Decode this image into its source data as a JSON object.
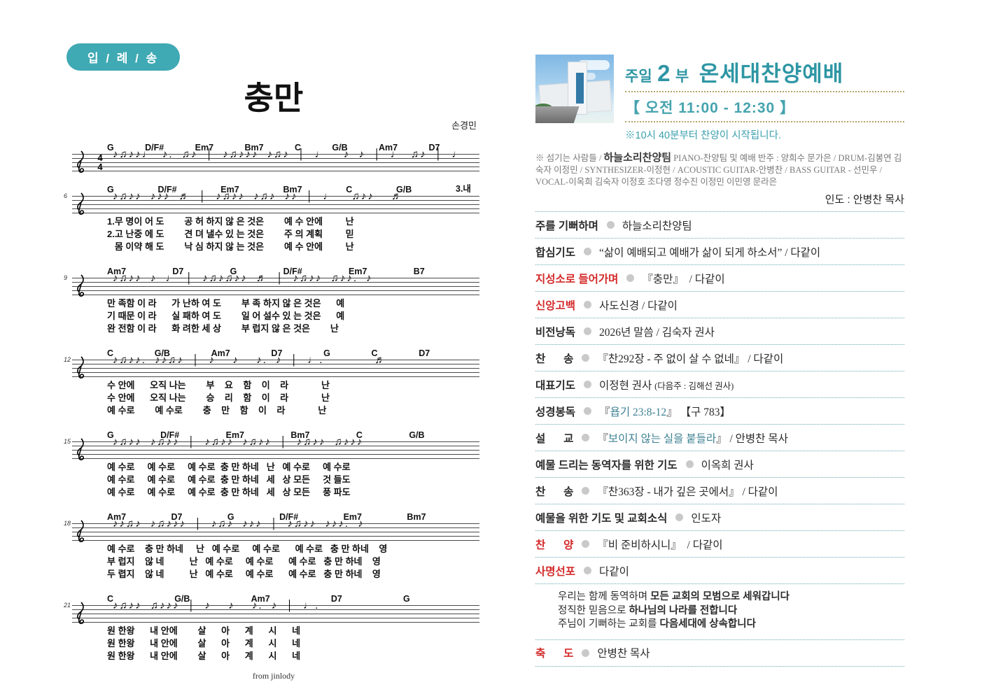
{
  "colors": {
    "teal": "#2e96a4",
    "red": "#d42a2a",
    "gold_dots": "#b3a269",
    "row_dots": "#6aa9b6"
  },
  "badge": {
    "text": "입 / 례 / 송"
  },
  "song": {
    "title": "충만",
    "composer": "손경민",
    "credit": "from jinlody",
    "time_signature": {
      "num": "4",
      "den": "4"
    },
    "systems": [
      {
        "measure": "",
        "annotation": "",
        "chords": [
          "G",
          "D/F#",
          "Em7",
          "Bm7",
          "C",
          "G/B",
          "Am7",
          "D7"
        ],
        "notes": "♪♫♪♪♩ ♪. ♫♪ │ ♪♫♪♪♪ ♪♫♪ │ ♩  ♪ ♪ │ ♩ ♫♪ │ ♩  ♪ ♬",
        "lyrics": []
      },
      {
        "measure": "6",
        "annotation": "3.내",
        "chords": [
          "G",
          "D/F#",
          "Em7",
          "Bm7",
          "C",
          "G/B"
        ],
        "notes": "♪♫♪♪ ♪♪♪ ♬ │ ♪♫♪♪ ♪♫♪ ♪♪ │ ♩  ♫♪♪  ♬",
        "lyrics": [
          "1.무 명이 어 도        공 허 하지 않 은 것은        예 수 안에         난",
          "2.고 난중 에 도        견 뎌 낼수 있 는 것은        주 의 계획         믿",
          "   몸 이약 해 도        낙 심 하지 않 는 것은        예 수 안에         난"
        ]
      },
      {
        "measure": "9",
        "annotation": "",
        "chords": [
          "Am7",
          "D7",
          "G",
          "D/F#",
          "Em7",
          "B7"
        ],
        "notes": "♪♫♪♪ ♪ ♩ │ ♪♫♪♫♪♪ ♬ │ ♪♫♪♪ ♫♪♪. ♪",
        "lyrics": [
          "만 족함 이 라      가 난하 여 도        부 족 하지 않 은 것은      예",
          "기 때문 이 라      실 패하 여 도        일 어 설수 있 는 것은      예",
          "완 전함 이 라      화 려한 세 상        부 럽지 않 은 것은        난"
        ]
      },
      {
        "measure": "12",
        "annotation": "",
        "chords": [
          "C",
          "G/B",
          "Am7",
          "D7",
          "G",
          "C",
          "D7"
        ],
        "notes": "♪♫♪♪. ♪♪♫♪ │ ♪  ♪  ♪. ♪ │ ♩.      ♬",
        "lyrics": [
          "수 안에      오직 나는        부    요    함    이    라             난",
          "수 안에      오직 나는        승    리    함    이    라             난",
          "예 수로        예 수로        충    만    함    이    라             난"
        ]
      },
      {
        "measure": "15",
        "annotation": "",
        "chords": [
          "G",
          "D/F#",
          "Em7",
          "Bm7",
          "C",
          "G/B"
        ],
        "notes": "♪♫♪♪ ♪♫♪♪ │ ♪♫♪♪ ♪♫♪♪ │ ♪♫♪♪ ♫♪♪♪",
        "lyrics": [
          "예 수로     예 수로     예 수로  충 만 하네   난   예 수로     예 수로",
          "예 수로     예 수로     예 수로  충 만 하네   세   상 모든     것 들도",
          "예 수로     예 수로     예 수로  충 만 하네   세   상 모든     풍 파도"
        ]
      },
      {
        "measure": "18",
        "annotation": "",
        "chords": [
          "Am7",
          "D7",
          "G",
          "D/F#",
          "Em7",
          "Bm7"
        ],
        "notes": "♪♪♫♪ ♪♫♪♪♪ │ ♪♫♪ ♪♪♪ │ ♪♫♪♪ ♪♪♪. ♪",
        "lyrics": [
          "예 수로    충 만 하네     난   예 수로     예 수로      예 수로   충 만 하네    영",
          "부 럽지    않 네          난   예 수로     예 수로      예 수로   충 만 하네    영",
          "두 렵지    않 네          난   예 수로     예 수로      예 수로   충 만 하네    영"
        ]
      },
      {
        "measure": "21",
        "annotation": "",
        "chords": [
          "C",
          "G/B",
          "Am7",
          "D7",
          "G"
        ],
        "notes": "♪♫♪♪ ♫♪♪♪ │ ♪  ♪  ♪. ♪ │ ♩.       ",
        "lyrics": [
          "원 한왕      내 안에        살      아      계      시      네",
          "원 한왕      내 안에        살      아      계      시      네",
          "원 한왕      내 안에        살      아      계      시      네"
        ]
      }
    ]
  },
  "header": {
    "service_pre": "주일",
    "service_num": "2",
    "service_bu": "부",
    "service_title": "온세대찬양예배",
    "time": "【 오전 11:00 - 12:30 】",
    "note": "※10시 40분부터 찬양이 시작됩니다."
  },
  "serving": {
    "prefix": "※ 섬기는 사람들 / ",
    "team": "하늘소리찬양팀",
    "detail": " PIANO-찬양팀 및 예배 반주 : 양희수 문가은 / DRUM-김봉연 김숙자 이정민 / SYNTHESIZER-이정현 / ACOUSTIC GUITAR-안병찬 / BASS GUITAR - 선민우 / VOCAL-이옥희 김숙자 이정호 조다영 정수진 이정민 이민영 문라은",
    "leader": "인도 : 안병찬 목사"
  },
  "order": {
    "rows": [
      {
        "label": "주를 기뻐하며",
        "pre": "하늘소리찬양팀",
        "teal": "",
        "post": "",
        "small": ""
      },
      {
        "label": "합심기도",
        "pre": "“삶이 예배되고 예배가 삶이 되게 하소서” / 다같이",
        "teal": "",
        "post": "",
        "small": ""
      },
      {
        "label": "지성소로 들어가며",
        "pre": "『충만』  / 다같이",
        "teal": "",
        "post": "",
        "small": ""
      },
      {
        "label": "신앙고백",
        "pre": "사도신경 / 다같이",
        "teal": "",
        "post": "",
        "small": ""
      },
      {
        "label": "비전낭독",
        "pre": "2026년 말씀 / 김숙자 권사",
        "teal": "",
        "post": "",
        "small": ""
      },
      {
        "label": "찬      송",
        "pre": "『찬292장 - 주 없이 살 수 없네』 / 다같이",
        "teal": "",
        "post": "",
        "small": ""
      },
      {
        "label": "대표기도",
        "pre": "이정현 권사 ",
        "teal": "",
        "post": "",
        "small": "(다음주 : 김해선 권사)"
      },
      {
        "label": "성경봉독",
        "pre": "『",
        "teal": "욥기 23:8-12",
        "post": "』 【구 783】",
        "small": ""
      },
      {
        "label": "설      교",
        "pre": "『",
        "teal": "보이지 않는 실을 붙들라",
        "post": "』 / 안병찬 목사",
        "small": ""
      },
      {
        "label": "예물 드리는 동역자를 위한 기도",
        "pre": "이옥희 권사",
        "teal": "",
        "post": "",
        "small": ""
      },
      {
        "label": "찬      송",
        "pre": "『찬363장 - 내가 깊은 곳에서』 / 다같이",
        "teal": "",
        "post": "",
        "small": ""
      },
      {
        "label": "예물을 위한 기도 및 교회소식",
        "pre": "인도자",
        "teal": "",
        "post": "",
        "small": ""
      },
      {
        "label": "찬      양",
        "pre": "『비 준비하시니』  / 다같이",
        "teal": "",
        "post": "",
        "small": ""
      },
      {
        "label": "사명선포",
        "pre": "다같이",
        "teal": "",
        "post": "",
        "small": ""
      },
      {
        "label": "축      도",
        "pre": "안병찬 목사",
        "teal": "",
        "post": "",
        "small": ""
      }
    ]
  },
  "mission": {
    "lines": [
      {
        "pre": "우리는 함께 동역하며 ",
        "bold": "모든 교회의 모범으로 세워갑니다"
      },
      {
        "pre": "정직한 믿음으로 ",
        "bold": "하나님의 나라를 전합니다"
      },
      {
        "pre": "주님이 기뻐하는 교회를 ",
        "bold": "다음세대에 상속합니다"
      }
    ]
  }
}
